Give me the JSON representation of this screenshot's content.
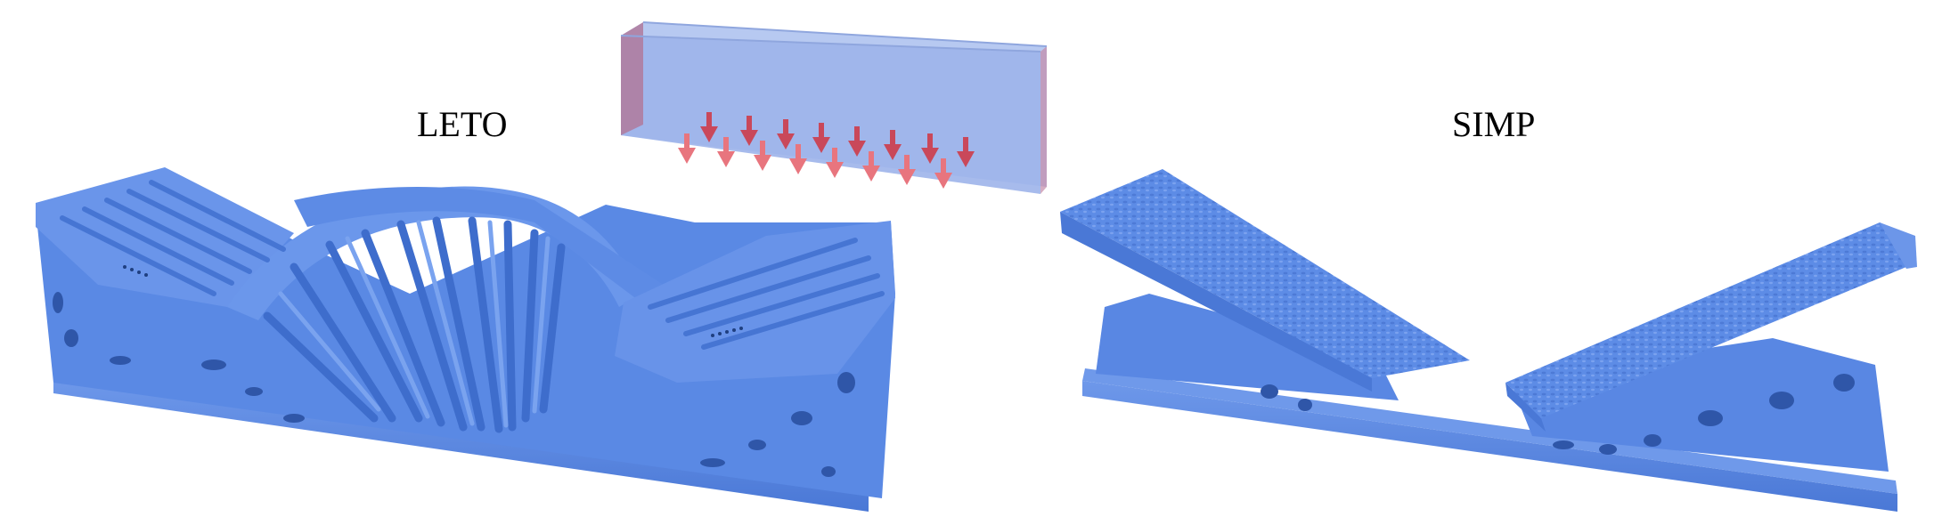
{
  "figure": {
    "left_method_label": "LETO",
    "right_method_label": "SIMP"
  },
  "colors": {
    "structure": "#5b8be6",
    "structure_dark": "#3f6fcf",
    "structure_light": "#7fa6ef",
    "domain_box": "#9db4ea",
    "support_face": "#b07a9c",
    "load_arrow": "#e8757e",
    "load_arrow_dark": "#c9485a"
  },
  "icons": {
    "load_arrows": "down-arrow-icon"
  }
}
